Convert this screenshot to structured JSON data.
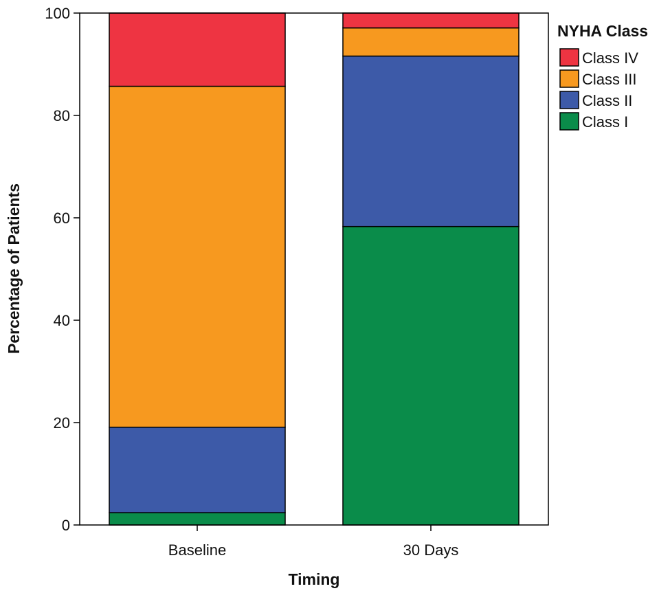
{
  "chart_data": {
    "type": "bar",
    "stacked": true,
    "xlabel": "Timing",
    "ylabel": "Percentage of Patients",
    "ylim": [
      0,
      100
    ],
    "yticks": [
      0,
      20,
      40,
      60,
      80,
      100
    ],
    "categories": [
      "Baseline",
      "30 Days"
    ],
    "series": [
      {
        "name": "Class I",
        "color": "#0a8c4a",
        "values": [
          2.4,
          58.3
        ]
      },
      {
        "name": "Class II",
        "color": "#3d5aa8",
        "values": [
          16.7,
          33.3
        ]
      },
      {
        "name": "Class III",
        "color": "#f7991f",
        "values": [
          66.6,
          5.5
        ]
      },
      {
        "name": "Class IV",
        "color": "#ee3442",
        "values": [
          14.3,
          2.9
        ]
      }
    ],
    "legend": {
      "title": "NYHA Class",
      "position": "top-right",
      "order": [
        "Class IV",
        "Class III",
        "Class II",
        "Class I"
      ]
    },
    "grid": false
  }
}
